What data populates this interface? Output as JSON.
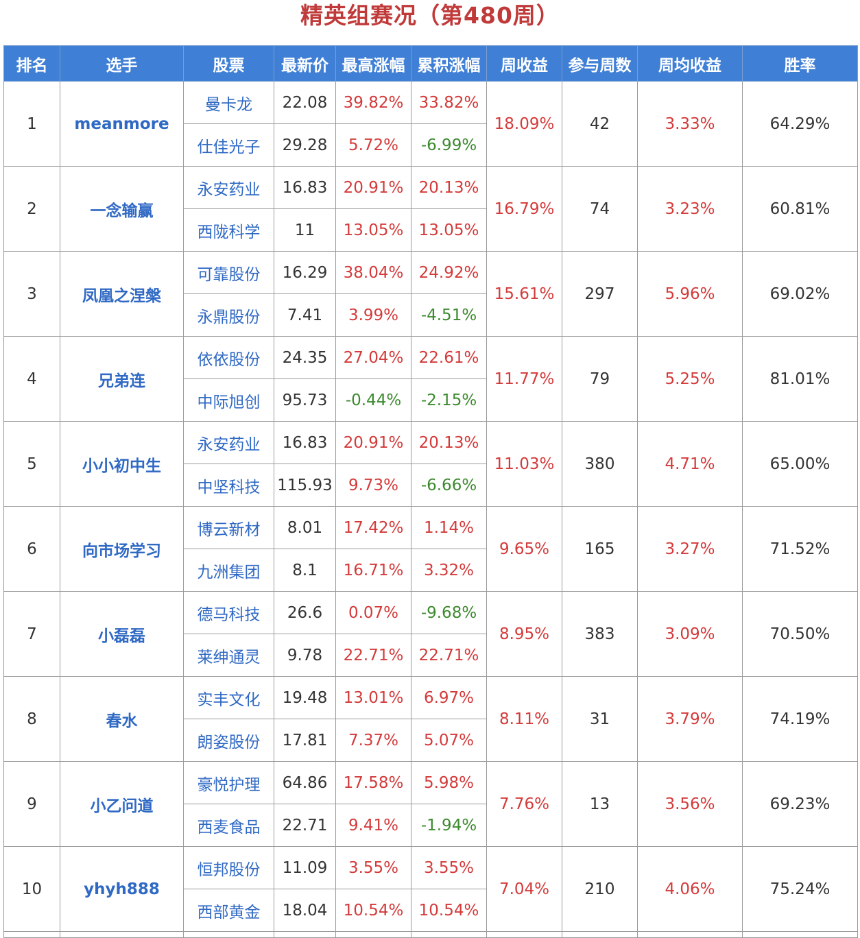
{
  "title": "精英组赛况（第480周）",
  "headers": [
    "排名",
    "选手",
    "股票",
    "最新价",
    "最高涨幅",
    "累积涨幅",
    "周收益",
    "参与周数",
    "周均收益",
    "胜率"
  ],
  "colors": {
    "header_bg": "#3f7fd5",
    "positive": "#d43a3a",
    "negative": "#3c8a2e",
    "link": "#2f69c4",
    "title": "#c03a3a"
  },
  "rows": [
    {
      "rank": "1",
      "player": "meanmore",
      "week_return": "18.09%",
      "weeks": "42",
      "avg_return": "3.33%",
      "win_rate": "64.29%",
      "stocks": [
        {
          "name": "曼卡龙",
          "price": "22.08",
          "max_gain": "39.82%",
          "cum_gain": "33.82%"
        },
        {
          "name": "仕佳光子",
          "price": "29.28",
          "max_gain": "5.72%",
          "cum_gain": "-6.99%"
        }
      ]
    },
    {
      "rank": "2",
      "player": "一念输赢",
      "week_return": "16.79%",
      "weeks": "74",
      "avg_return": "3.23%",
      "win_rate": "60.81%",
      "stocks": [
        {
          "name": "永安药业",
          "price": "16.83",
          "max_gain": "20.91%",
          "cum_gain": "20.13%"
        },
        {
          "name": "西陇科学",
          "price": "11",
          "max_gain": "13.05%",
          "cum_gain": "13.05%"
        }
      ]
    },
    {
      "rank": "3",
      "player": "凤凰之涅槃",
      "week_return": "15.61%",
      "weeks": "297",
      "avg_return": "5.96%",
      "win_rate": "69.02%",
      "stocks": [
        {
          "name": "可靠股份",
          "price": "16.29",
          "max_gain": "38.04%",
          "cum_gain": "24.92%"
        },
        {
          "name": "永鼎股份",
          "price": "7.41",
          "max_gain": "3.99%",
          "cum_gain": "-4.51%"
        }
      ]
    },
    {
      "rank": "4",
      "player": "兄弟连",
      "week_return": "11.77%",
      "weeks": "79",
      "avg_return": "5.25%",
      "win_rate": "81.01%",
      "stocks": [
        {
          "name": "依依股份",
          "price": "24.35",
          "max_gain": "27.04%",
          "cum_gain": "22.61%"
        },
        {
          "name": "中际旭创",
          "price": "95.73",
          "max_gain": "-0.44%",
          "cum_gain": "-2.15%"
        }
      ]
    },
    {
      "rank": "5",
      "player": "小小初中生",
      "week_return": "11.03%",
      "weeks": "380",
      "avg_return": "4.71%",
      "win_rate": "65.00%",
      "stocks": [
        {
          "name": "永安药业",
          "price": "16.83",
          "max_gain": "20.91%",
          "cum_gain": "20.13%"
        },
        {
          "name": "中坚科技",
          "price": "115.93",
          "max_gain": "9.73%",
          "cum_gain": "-6.66%"
        }
      ]
    },
    {
      "rank": "6",
      "player": "向市场学习",
      "week_return": "9.65%",
      "weeks": "165",
      "avg_return": "3.27%",
      "win_rate": "71.52%",
      "stocks": [
        {
          "name": "博云新材",
          "price": "8.01",
          "max_gain": "17.42%",
          "cum_gain": "1.14%"
        },
        {
          "name": "九洲集团",
          "price": "8.1",
          "max_gain": "16.71%",
          "cum_gain": "3.32%"
        }
      ]
    },
    {
      "rank": "7",
      "player": "小磊磊",
      "week_return": "8.95%",
      "weeks": "383",
      "avg_return": "3.09%",
      "win_rate": "70.50%",
      "stocks": [
        {
          "name": "德马科技",
          "price": "26.6",
          "max_gain": "0.07%",
          "cum_gain": "-9.68%"
        },
        {
          "name": "莱绅通灵",
          "price": "9.78",
          "max_gain": "22.71%",
          "cum_gain": "22.71%"
        }
      ]
    },
    {
      "rank": "8",
      "player": "春水",
      "week_return": "8.11%",
      "weeks": "31",
      "avg_return": "3.79%",
      "win_rate": "74.19%",
      "stocks": [
        {
          "name": "实丰文化",
          "price": "19.48",
          "max_gain": "13.01%",
          "cum_gain": "6.97%"
        },
        {
          "name": "朗姿股份",
          "price": "17.81",
          "max_gain": "7.37%",
          "cum_gain": "5.07%"
        }
      ]
    },
    {
      "rank": "9",
      "player": "小乙问道",
      "week_return": "7.76%",
      "weeks": "13",
      "avg_return": "3.56%",
      "win_rate": "69.23%",
      "stocks": [
        {
          "name": "豪悦护理",
          "price": "64.86",
          "max_gain": "17.58%",
          "cum_gain": "5.98%"
        },
        {
          "name": "西麦食品",
          "price": "22.71",
          "max_gain": "9.41%",
          "cum_gain": "-1.94%"
        }
      ]
    },
    {
      "rank": "10",
      "player": "yhyh888",
      "week_return": "7.04%",
      "weeks": "210",
      "avg_return": "4.06%",
      "win_rate": "75.24%",
      "stocks": [
        {
          "name": "恒邦股份",
          "price": "11.09",
          "max_gain": "3.55%",
          "cum_gain": "3.55%"
        },
        {
          "name": "西部黄金",
          "price": "18.04",
          "max_gain": "10.54%",
          "cum_gain": "10.54%"
        }
      ]
    }
  ]
}
